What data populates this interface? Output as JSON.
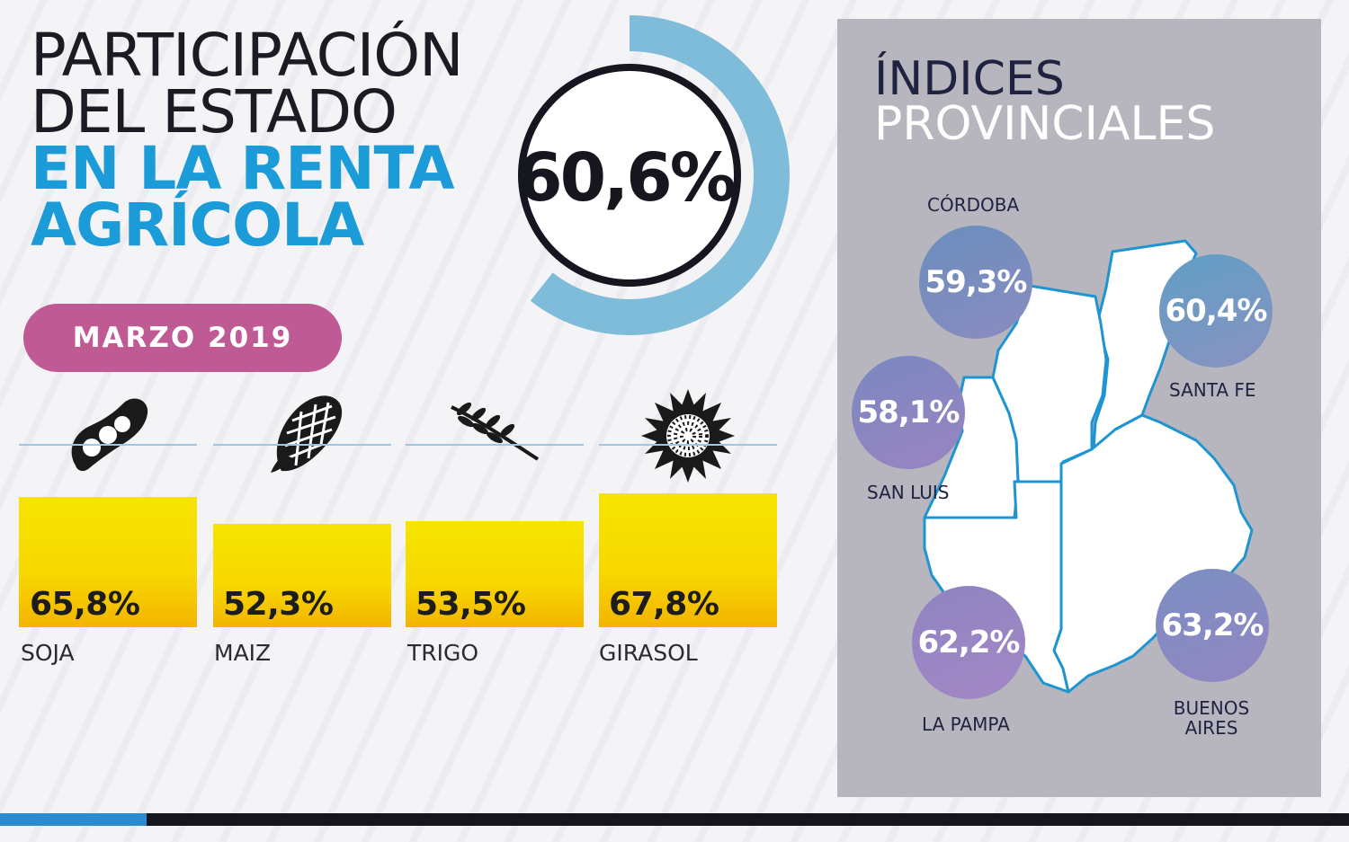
{
  "header": {
    "title_lines": [
      {
        "text": "PARTICIPACIÓN",
        "style": "dark"
      },
      {
        "text": "DEL ESTADO",
        "style": "dark"
      },
      {
        "text": "EN LA RENTA",
        "style": "blue"
      },
      {
        "text": "AGRÍCOLA",
        "style": "blue"
      }
    ],
    "total_value": "60,6%",
    "total_fraction": 0.606,
    "date_pill": "MARZO 2019"
  },
  "colors": {
    "title_dark": "#1b1b24",
    "title_blue": "#1b9bd7",
    "ring": "#7fbcd9",
    "pill": "#c05a95",
    "bar": "#f6e000",
    "panel": "#b7b6be",
    "map_outline": "#1e95d2",
    "circle_start": "#6b8fbd",
    "circle_end": "#9a86c2"
  },
  "chart_data": [
    {
      "type": "bar",
      "categories": [
        "SOJA",
        "MAIZ",
        "TRIGO",
        "GIRASOL"
      ],
      "values": [
        65.8,
        52.3,
        53.5,
        67.8
      ],
      "labels": [
        "65,8%",
        "52,3%",
        "53,5%",
        "67,8%"
      ],
      "icons": [
        "soybean-icon",
        "corn-icon",
        "wheat-icon",
        "sunflower-icon"
      ],
      "unit": "%"
    }
  ],
  "provinces": {
    "title_line1": "ÍNDICES",
    "title_line2": "PROVINCIALES",
    "items": [
      {
        "name": "CÓRDOBA",
        "value": "59,3%"
      },
      {
        "name": "SANTA FE",
        "value": "60,4%"
      },
      {
        "name": "SAN LUIS",
        "value": "58,1%"
      },
      {
        "name": "LA PAMPA",
        "value": "62,2%"
      },
      {
        "name": "BUENOS AIRES",
        "value": "63,2%"
      }
    ]
  }
}
